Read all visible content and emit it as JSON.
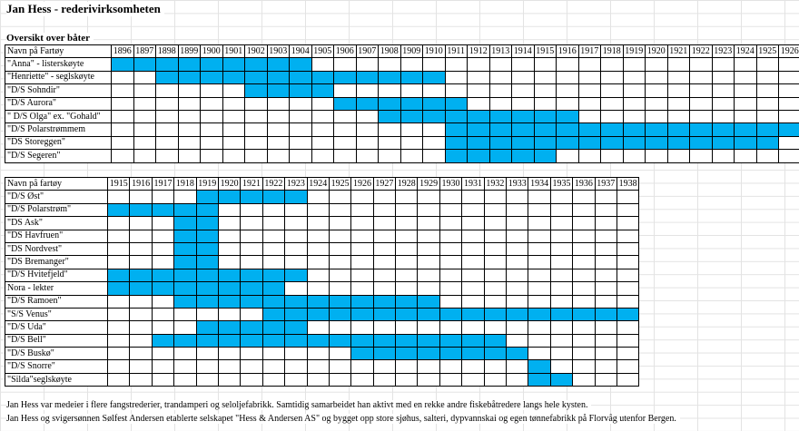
{
  "title": "Jan Hess - rederivirksomheten",
  "subtitle": "Oversikt over båter",
  "table1": {
    "header": "Navn på Fartøy",
    "years": [
      1896,
      1897,
      1898,
      1899,
      1900,
      1901,
      1902,
      1903,
      1904,
      1905,
      1906,
      1907,
      1908,
      1909,
      1910,
      1911,
      1912,
      1913,
      1914,
      1915,
      1916,
      1917,
      1918,
      1919,
      1920,
      1921,
      1922,
      1923,
      1924,
      1925,
      1926
    ],
    "rows": [
      {
        "name": "\"Anna\" - listerskøyte",
        "from": 1896,
        "to": 1904
      },
      {
        "name": "\"Henriette\" - seglskøyte",
        "from": 1898,
        "to": 1910
      },
      {
        "name": "\"D/S Sohndir\"",
        "from": 1902,
        "to": 1905
      },
      {
        "name": "\"D/S Aurora\"",
        "from": 1906,
        "to": 1911
      },
      {
        "name": "\" D/S Olga\" ex. \"Gohald\"",
        "from": 1908,
        "to": 1916
      },
      {
        "name": "\"D/S Polarstrømmem",
        "from": 1911,
        "to": 1926
      },
      {
        "name": "\"DS Storeggen\"",
        "from": 1911,
        "to": 1925
      },
      {
        "name": "\"D/S Segeren\"",
        "from": 1911,
        "to": 1915
      }
    ]
  },
  "table2": {
    "header": "Navn på fartøy",
    "years": [
      1915,
      1916,
      1917,
      1918,
      1919,
      1920,
      1921,
      1922,
      1923,
      1924,
      1925,
      1926,
      1927,
      1928,
      1929,
      1930,
      1931,
      1932,
      1933,
      1934,
      1935,
      1936,
      1937,
      1938
    ],
    "rows": [
      {
        "name": "\"D/S Øst\"",
        "from": 1919,
        "to": 1923
      },
      {
        "name": "\"D/S Polarstrøm\"",
        "from": 1915,
        "to": 1919
      },
      {
        "name": "\"DS Ask\"",
        "from": 1918,
        "to": 1919
      },
      {
        "name": "\"DS Havfruen\"",
        "from": 1918,
        "to": 1919
      },
      {
        "name": "\"DS Nordvest\"",
        "from": 1918,
        "to": 1919
      },
      {
        "name": "\"DS Bremanger\"",
        "from": 1918,
        "to": 1919
      },
      {
        "name": "\"D/S Hvitefjeld\"",
        "from": 1915,
        "to": 1923
      },
      {
        "name": "Nora - lekter",
        "from": 1915,
        "to": 1922
      },
      {
        "name": "\"D/S Ramoen\"",
        "from": 1918,
        "to": 1929
      },
      {
        "name": "\"S/S Venus\"",
        "from": 1922,
        "to": 1938
      },
      {
        "name": "\"D/S Uda\"",
        "from": 1919,
        "to": 1923
      },
      {
        "name": "\"D/S Bell\"",
        "from": 1917,
        "to": 1932
      },
      {
        "name": "\"D/S Buskø\"",
        "from": 1926,
        "to": 1933
      },
      {
        "name": "\"D/S Snorre\"",
        "from": 1934,
        "to": 1934
      },
      {
        "name": "\"Silda\"seglskøyte",
        "from": 1934,
        "to": 1935
      }
    ]
  },
  "notes": [
    "Jan Hess var medeier i flere fangstrederier, trandamperi og seloljefabrikk. Samtidig samarbeidet han aktivt med en rekke andre fiskebåtredere langs hele kysten.",
    "Jan Hess og svigersønnen Sølfest Andersen etablerte selskapet \"Hess & Andersen AS\" og bygget opp store sjøhus, salteri, dypvannskai og egen tønnefabrikk på Florvåg utenfor Bergen."
  ]
}
